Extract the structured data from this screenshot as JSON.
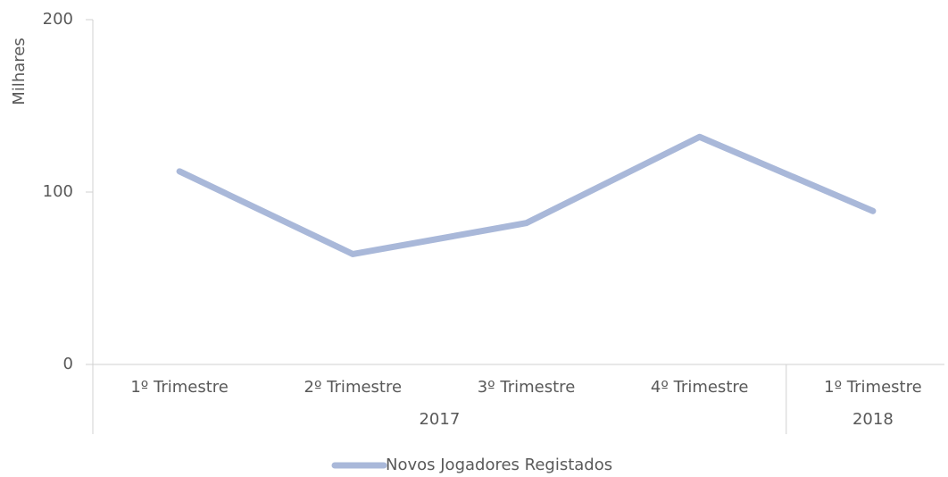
{
  "chart_data": {
    "type": "line",
    "y_axis_label": "Milhares",
    "categories": [
      "1º Trimestre",
      "2º Trimestre",
      "3º Trimestre",
      "4º Trimestre",
      "1º Trimestre"
    ],
    "groups": [
      {
        "label": "2017",
        "span": 4
      },
      {
        "label": "2018",
        "span": 1
      }
    ],
    "series": [
      {
        "name": "Novos Jogadores Registados",
        "color": "#a9b8d9",
        "values": [
          112,
          64,
          82,
          132,
          89
        ]
      }
    ],
    "ylim": [
      0,
      200
    ],
    "yticks": [
      0,
      100,
      200
    ],
    "legend": "bottom"
  }
}
